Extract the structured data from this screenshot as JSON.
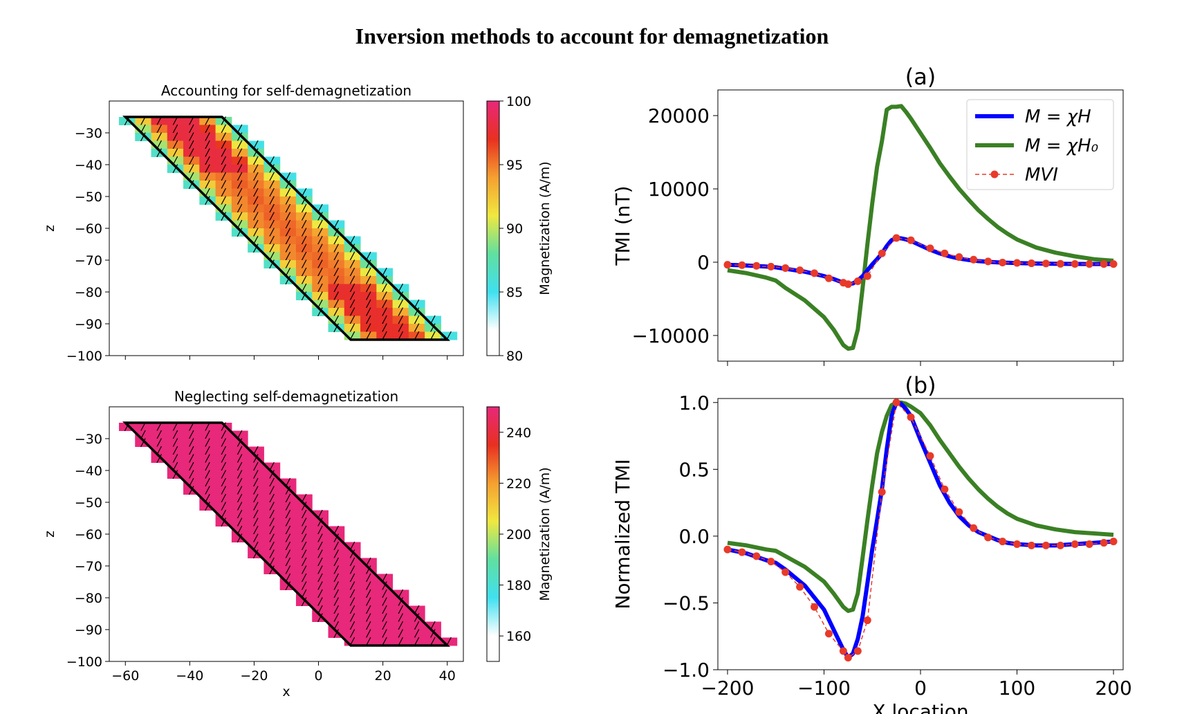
{
  "figure_title": "Inversion methods to account for demagnetization",
  "chart_data": [
    {
      "id": "panel-top-left",
      "type": "heatmap",
      "title": "Accounting for self-demagnetization",
      "xlabel": "",
      "ylabel": "z",
      "xlim": [
        -65,
        45
      ],
      "ylim": [
        -100,
        -20
      ],
      "xticks": [
        -60,
        -40,
        -20,
        0,
        20,
        40
      ],
      "yticks": [
        -100,
        -90,
        -80,
        -70,
        -60,
        -50,
        -40,
        -30
      ],
      "xtick_labels_shown": false,
      "colorbar": {
        "label": "Magnetization (A/m)",
        "range": [
          80,
          100
        ],
        "ticks": [
          80,
          85,
          90,
          95,
          100
        ],
        "colormap": [
          "#ffffff",
          "#40e0f0",
          "#60e0a0",
          "#f0e840",
          "#f5a030",
          "#e83020",
          "#e8287a"
        ]
      },
      "outline": [
        [
          -60,
          -25
        ],
        [
          -30,
          -25
        ],
        [
          40,
          -95
        ],
        [
          10,
          -95
        ]
      ],
      "cell_values_description_free": true,
      "magnetization_profile": {
        "edge_value": 86,
        "core_value_top": 98,
        "core_value_bottom": 97,
        "mid_value": 94
      },
      "arrow_direction_deg": 62
    },
    {
      "id": "panel-bottom-left",
      "type": "heatmap",
      "title": "Neglecting self-demagnetization",
      "xlabel": "x",
      "ylabel": "z",
      "xlim": [
        -65,
        45
      ],
      "ylim": [
        -100,
        -20
      ],
      "xticks": [
        -60,
        -40,
        -20,
        0,
        20,
        40
      ],
      "yticks": [
        -100,
        -90,
        -80,
        -70,
        -60,
        -50,
        -40,
        -30
      ],
      "xtick_labels_shown": true,
      "colorbar": {
        "label": "Magnetization (A/m)",
        "range": [
          150,
          250
        ],
        "ticks": [
          160,
          180,
          200,
          220,
          240
        ],
        "colormap": [
          "#ffffff",
          "#40e0f0",
          "#60e0a0",
          "#f0e840",
          "#f5a030",
          "#e83020",
          "#e8287a"
        ]
      },
      "outline": [
        [
          -60,
          -25
        ],
        [
          -30,
          -25
        ],
        [
          40,
          -95
        ],
        [
          10,
          -95
        ]
      ],
      "uniform_value": 250,
      "arrow_direction_deg": 62
    },
    {
      "id": "panel-a",
      "type": "line",
      "title": "(a)",
      "xlabel": "",
      "ylabel": "TMI (nT)",
      "xlim": [
        -210,
        210
      ],
      "ylim": [
        -13500,
        23500
      ],
      "xticks": [
        -200,
        -100,
        0,
        100,
        200
      ],
      "xtick_labels_shown": false,
      "yticks": [
        -10000,
        0,
        10000,
        20000
      ],
      "ytick_labels": [
        "−10000",
        "0",
        "10000",
        "20000"
      ],
      "legend": {
        "placement": "top-right",
        "entries": [
          {
            "label": "M = χH",
            "series": 0
          },
          {
            "label": "M = χH₀",
            "series": 1
          },
          {
            "label": "MVI",
            "series": 2
          }
        ]
      },
      "x": [
        -200,
        -180,
        -160,
        -150,
        -140,
        -120,
        -100,
        -90,
        -80,
        -75,
        -70,
        -65,
        -60,
        -55,
        -50,
        -45,
        -40,
        -35,
        -30,
        -25,
        -20,
        -15,
        -10,
        0,
        10,
        20,
        30,
        40,
        50,
        60,
        70,
        80,
        90,
        100,
        120,
        140,
        160,
        180,
        200
      ],
      "series": [
        {
          "name": "M = χH",
          "color": "#0000ff",
          "values": [
            -350,
            -450,
            -600,
            -700,
            -900,
            -1300,
            -1900,
            -2300,
            -2800,
            -3000,
            -2900,
            -2500,
            -1900,
            -1100,
            -300,
            400,
            1200,
            2200,
            3000,
            3300,
            3250,
            3100,
            2900,
            2300,
            1700,
            1200,
            800,
            500,
            300,
            150,
            50,
            -20,
            -80,
            -120,
            -180,
            -220,
            -240,
            -250,
            -250
          ]
        },
        {
          "name": "M = χH₀",
          "color": "#3a8024",
          "values": [
            -1100,
            -1500,
            -2100,
            -2500,
            -3500,
            -5200,
            -7500,
            -9200,
            -11300,
            -11800,
            -11700,
            -9200,
            -3500,
            2500,
            8000,
            13000,
            16500,
            20800,
            21200,
            21200,
            21300,
            20500,
            19600,
            17600,
            15600,
            13500,
            11700,
            10000,
            8500,
            7100,
            5900,
            4800,
            3900,
            3100,
            2000,
            1300,
            800,
            400,
            200
          ]
        },
        {
          "name": "MVI",
          "color": "#e83a2a",
          "dashed": true,
          "markers": true,
          "x": [
            -200,
            -185,
            -170,
            -155,
            -140,
            -125,
            -110,
            -95,
            -80,
            -75,
            -65,
            -55,
            -40,
            -25,
            -10,
            10,
            25,
            40,
            55,
            70,
            85,
            100,
            115,
            130,
            145,
            160,
            175,
            190,
            200
          ],
          "values": [
            -350,
            -400,
            -500,
            -600,
            -800,
            -1100,
            -1500,
            -2200,
            -2800,
            -3000,
            -2600,
            -1900,
            1200,
            3300,
            3000,
            1900,
            1200,
            700,
            350,
            100,
            -50,
            -100,
            -150,
            -180,
            -220,
            -240,
            -250,
            -250,
            -250
          ]
        }
      ]
    },
    {
      "id": "panel-b",
      "type": "line",
      "title": "(b)",
      "xlabel": "X location",
      "ylabel": "Normalized TMI",
      "xlim": [
        -210,
        210
      ],
      "ylim": [
        -1.0,
        1.03
      ],
      "xticks": [
        -200,
        -100,
        0,
        100,
        200
      ],
      "xtick_labels": [
        "−200",
        "−100",
        "0",
        "100",
        "200"
      ],
      "yticks": [
        -1.0,
        -0.5,
        0.0,
        0.5,
        1.0
      ],
      "ytick_labels": [
        "−1.0",
        "−0.5",
        "0.0",
        "0.5",
        "1.0"
      ],
      "x": [
        -200,
        -180,
        -160,
        -150,
        -140,
        -120,
        -100,
        -90,
        -80,
        -75,
        -70,
        -65,
        -60,
        -55,
        -50,
        -45,
        -40,
        -35,
        -30,
        -25,
        -20,
        -15,
        -10,
        0,
        10,
        20,
        30,
        40,
        50,
        60,
        70,
        80,
        90,
        100,
        120,
        140,
        160,
        180,
        200
      ],
      "series": [
        {
          "name": "M = χH",
          "color": "#0000ff",
          "values": [
            -0.1,
            -0.13,
            -0.18,
            -0.2,
            -0.25,
            -0.37,
            -0.55,
            -0.7,
            -0.85,
            -0.91,
            -0.88,
            -0.77,
            -0.6,
            -0.35,
            -0.1,
            0.12,
            0.35,
            0.65,
            0.9,
            1.0,
            0.99,
            0.95,
            0.9,
            0.72,
            0.55,
            0.38,
            0.25,
            0.15,
            0.08,
            0.03,
            0.0,
            -0.03,
            -0.05,
            -0.06,
            -0.07,
            -0.07,
            -0.06,
            -0.05,
            -0.04
          ]
        },
        {
          "name": "M = χH₀",
          "color": "#3a8024",
          "values": [
            -0.05,
            -0.07,
            -0.1,
            -0.11,
            -0.15,
            -0.23,
            -0.34,
            -0.43,
            -0.53,
            -0.56,
            -0.55,
            -0.43,
            -0.16,
            0.12,
            0.38,
            0.62,
            0.78,
            0.9,
            0.98,
            1.0,
            1.0,
            0.99,
            0.97,
            0.92,
            0.83,
            0.72,
            0.62,
            0.52,
            0.43,
            0.35,
            0.28,
            0.22,
            0.17,
            0.13,
            0.08,
            0.05,
            0.03,
            0.02,
            0.01
          ]
        },
        {
          "name": "MVI",
          "color": "#e83a2a",
          "dashed": true,
          "markers": true,
          "x": [
            -200,
            -185,
            -170,
            -155,
            -140,
            -125,
            -110,
            -95,
            -80,
            -75,
            -65,
            -55,
            -40,
            -25,
            -10,
            10,
            25,
            40,
            55,
            70,
            85,
            100,
            115,
            130,
            145,
            160,
            175,
            190,
            200
          ],
          "values": [
            -0.1,
            -0.12,
            -0.15,
            -0.19,
            -0.27,
            -0.38,
            -0.53,
            -0.73,
            -0.86,
            -0.91,
            -0.86,
            -0.63,
            0.33,
            1.0,
            0.89,
            0.6,
            0.35,
            0.18,
            0.06,
            -0.01,
            -0.04,
            -0.06,
            -0.07,
            -0.07,
            -0.07,
            -0.06,
            -0.06,
            -0.05,
            -0.04
          ]
        }
      ]
    }
  ]
}
